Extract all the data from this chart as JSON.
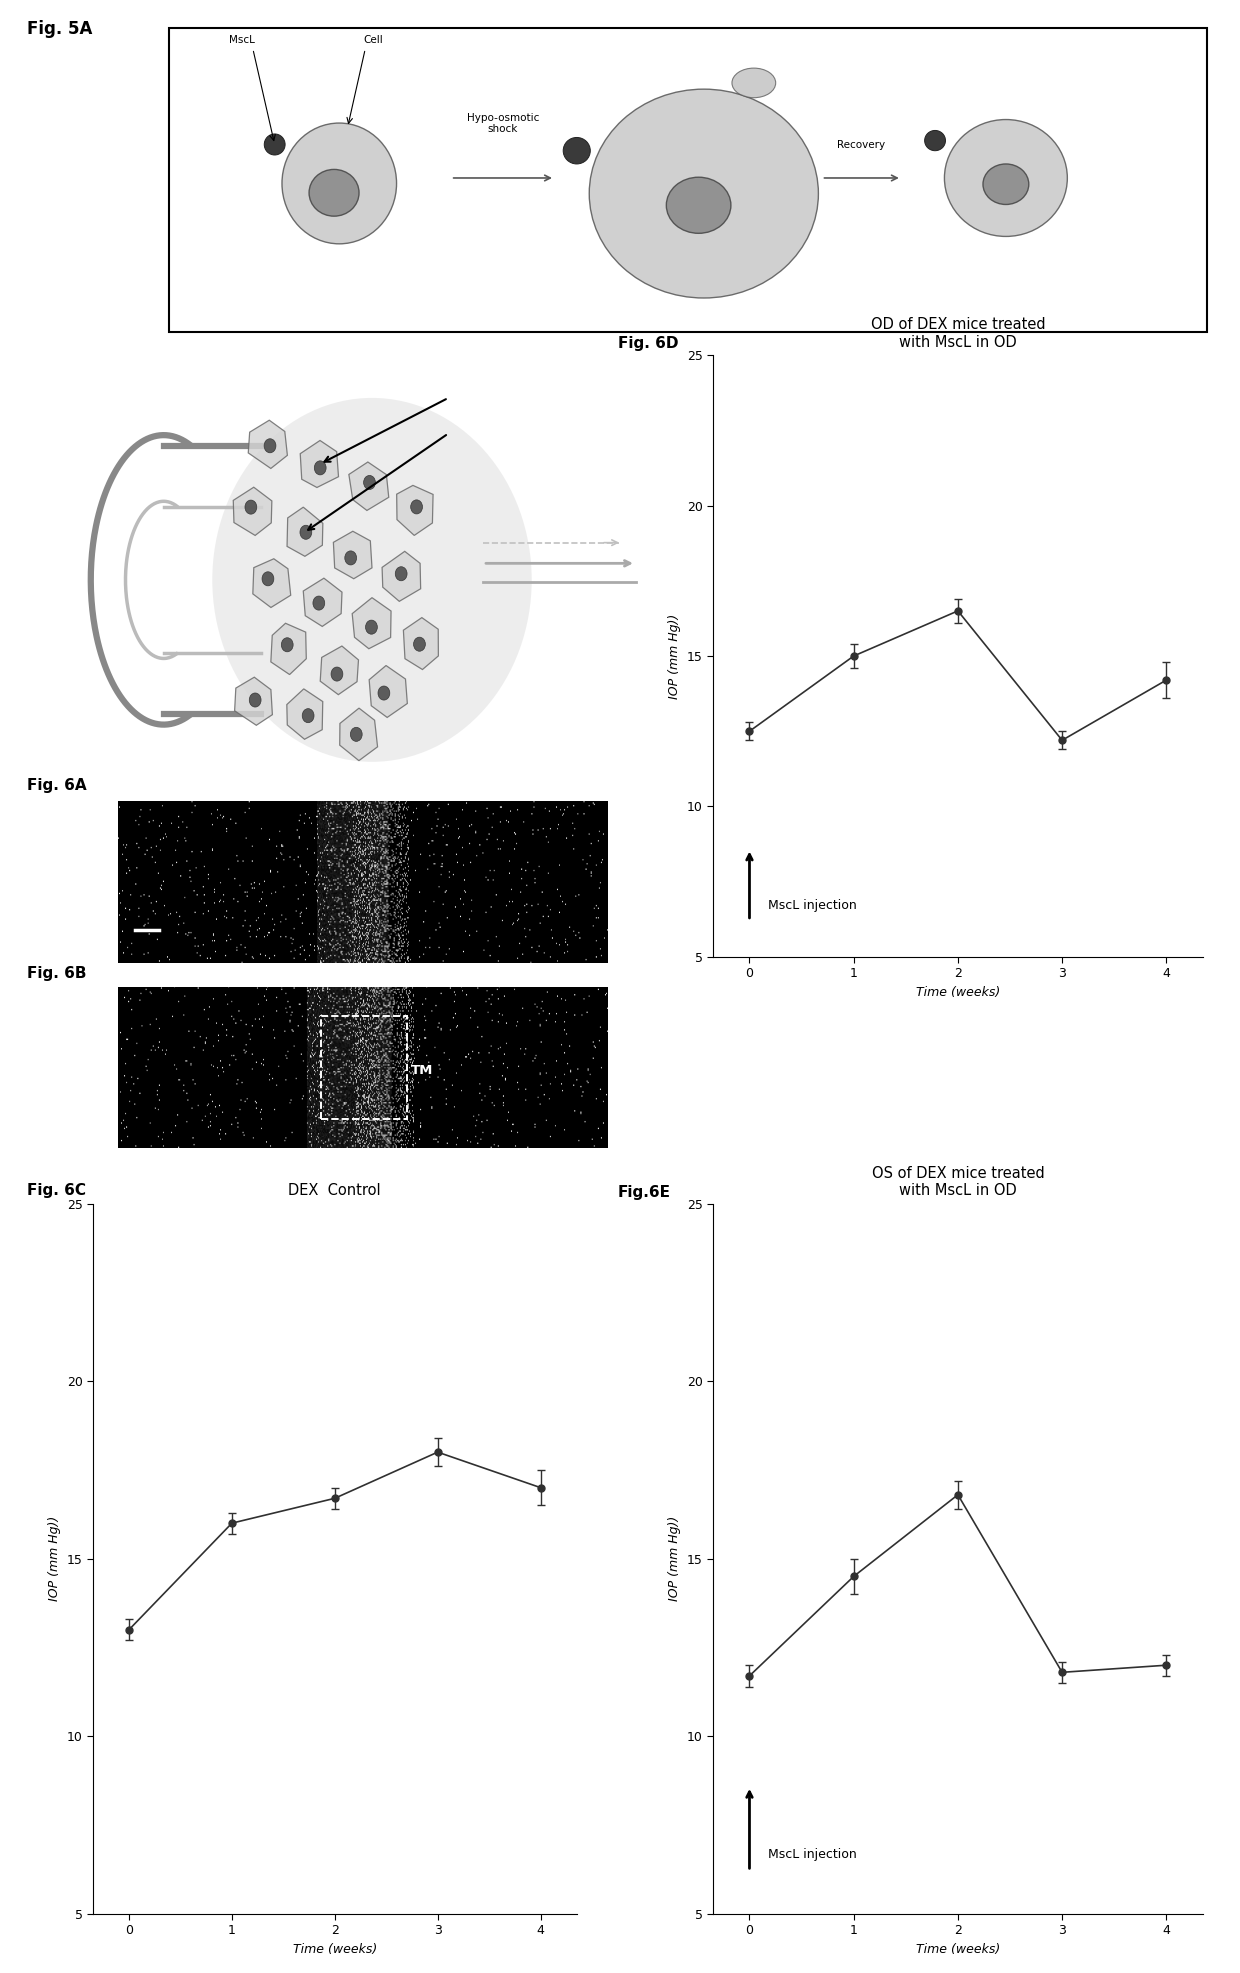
{
  "fig5A_label": "Fig. 5A",
  "fig6A_label": "Fig. 6A",
  "fig6B_label": "Fig. 6B",
  "fig6C_label": "Fig. 6C",
  "fig6D_label": "Fig. 6D",
  "fig6E_label": "Fig.6E",
  "fig6C_title": "DEX  Control",
  "fig6C_x": [
    0,
    1,
    2,
    3,
    4
  ],
  "fig6C_y": [
    13.0,
    16.0,
    16.7,
    18.0,
    17.0
  ],
  "fig6C_yerr": [
    0.3,
    0.3,
    0.3,
    0.4,
    0.5
  ],
  "fig6C_xlabel": "Time (weeks)",
  "fig6C_ylabel": "IOP (mm Hg))",
  "fig6C_ylim": [
    5,
    25
  ],
  "fig6C_yticks": [
    5,
    10,
    15,
    20,
    25
  ],
  "fig6D_title": "OD of DEX mice treated\nwith MscL in OD",
  "fig6D_x": [
    0,
    1,
    2,
    3,
    4
  ],
  "fig6D_y": [
    12.5,
    15.0,
    16.5,
    12.2,
    14.2
  ],
  "fig6D_yerr": [
    0.3,
    0.4,
    0.4,
    0.3,
    0.6
  ],
  "fig6D_xlabel": "Time (weeks)",
  "fig6D_ylabel": "IOP (mm Hg))",
  "fig6D_ylim": [
    5,
    25
  ],
  "fig6D_yticks": [
    5,
    10,
    15,
    20,
    25
  ],
  "fig6D_inj_text": "MscL injection",
  "fig6E_title": "OS of DEX mice treated\nwith MscL in OD",
  "fig6E_x": [
    0,
    1,
    2,
    3,
    4
  ],
  "fig6E_y": [
    11.7,
    14.5,
    16.8,
    11.8,
    12.0
  ],
  "fig6E_yerr": [
    0.3,
    0.5,
    0.4,
    0.3,
    0.3
  ],
  "fig6E_xlabel": "Time (weeks)",
  "fig6E_ylabel": "IOP (mm Hg))",
  "fig6E_ylim": [
    5,
    25
  ],
  "fig6E_yticks": [
    5,
    10,
    15,
    20,
    25
  ],
  "fig6E_inj_text": "MscL injection",
  "line_color": "#303030",
  "marker_color": "#303030",
  "bg_color": "#ffffff"
}
